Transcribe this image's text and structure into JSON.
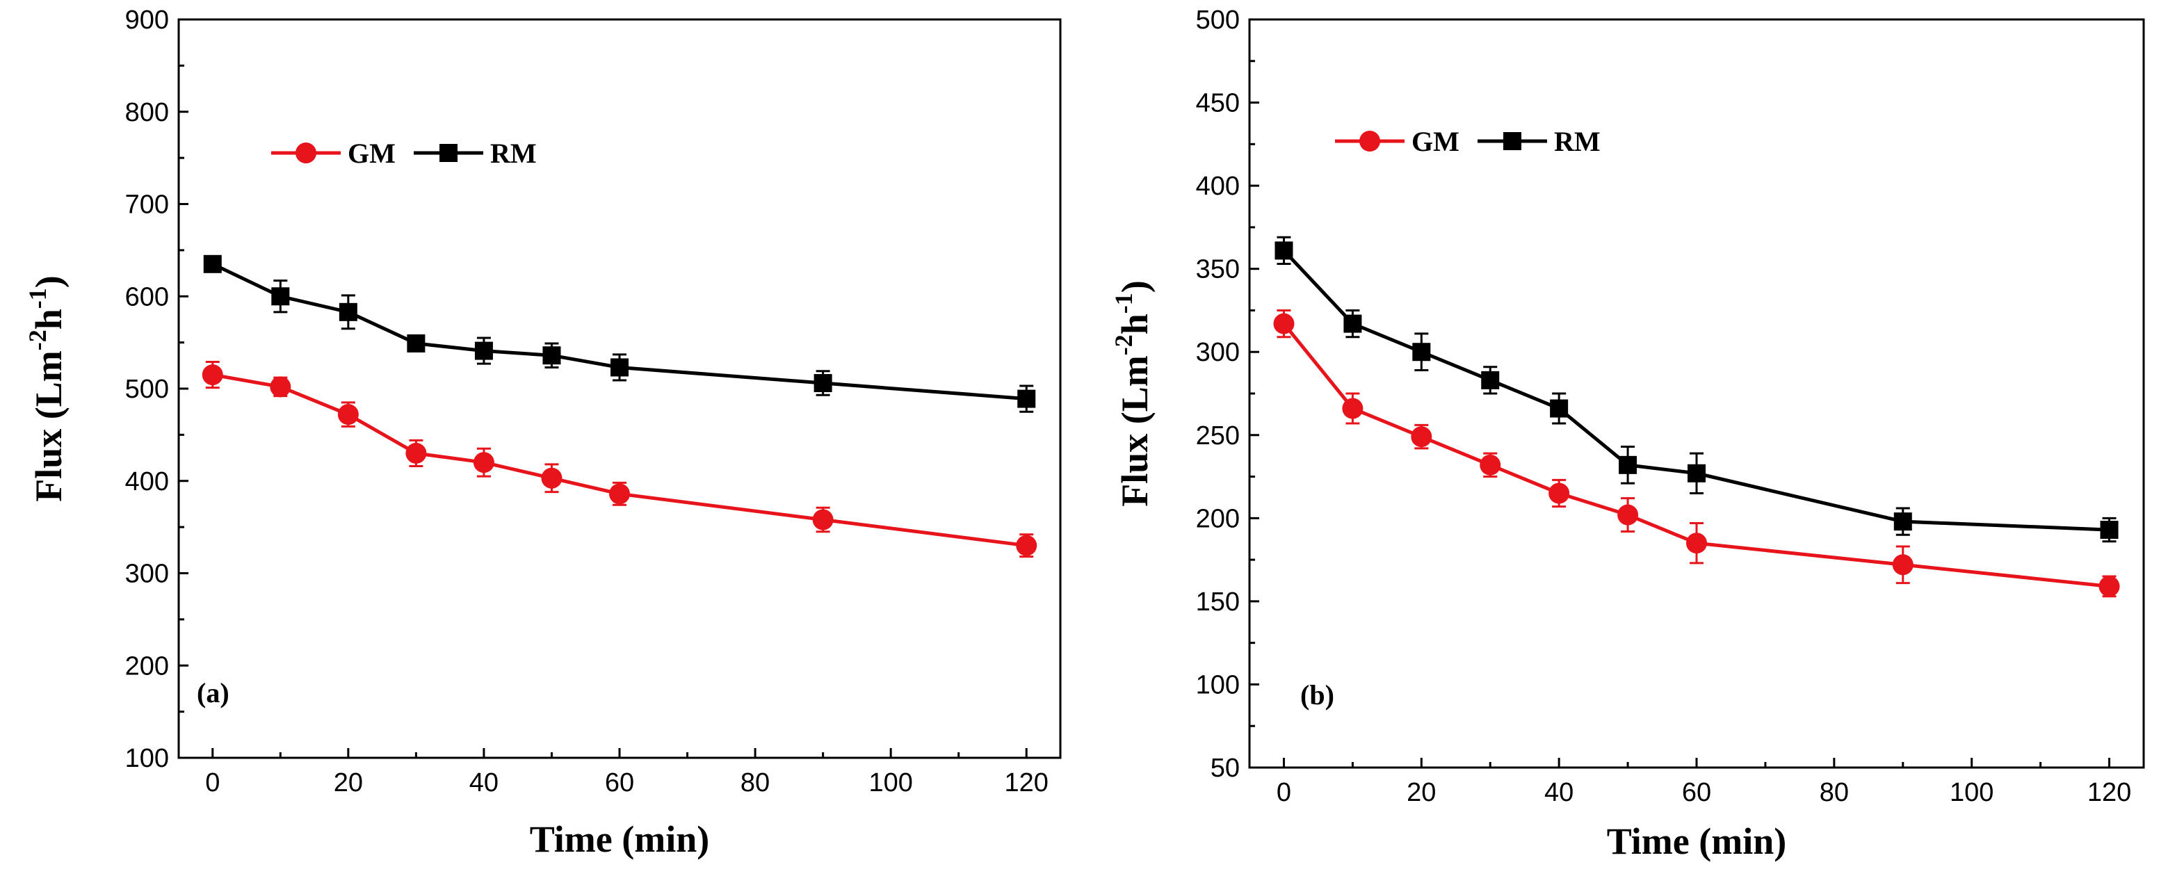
{
  "chart_data": [
    {
      "type": "line",
      "panel_label": "(a)",
      "xlabel": "Time (min)",
      "ylabel": "Flux (Lm⁻²h⁻¹)",
      "ylabel_parts": {
        "base": "Flux (Lm",
        "sup1": "-2",
        "mid": "h",
        "sup2": "-1",
        "end": ")"
      },
      "xlim": [
        -5,
        125
      ],
      "ylim": [
        100,
        900
      ],
      "xticks": [
        0,
        20,
        40,
        60,
        80,
        100,
        120
      ],
      "yticks": [
        100,
        200,
        300,
        400,
        500,
        600,
        700,
        800,
        900
      ],
      "legend": "top-left",
      "grid": false,
      "series": [
        {
          "name": "GM",
          "color": "#e8141b",
          "marker": "circle",
          "x": [
            0,
            10,
            20,
            30,
            40,
            50,
            60,
            90,
            120
          ],
          "y": [
            515,
            502,
            472,
            430,
            420,
            403,
            386,
            358,
            330
          ],
          "err": [
            14,
            10,
            13,
            14,
            15,
            15,
            12,
            13,
            12
          ]
        },
        {
          "name": "RM",
          "color": "#000000",
          "marker": "square",
          "x": [
            0,
            10,
            20,
            30,
            40,
            50,
            60,
            90,
            120
          ],
          "y": [
            635,
            600,
            583,
            549,
            541,
            536,
            523,
            506,
            489
          ],
          "err": [
            8,
            17,
            18,
            8,
            14,
            13,
            14,
            13,
            14
          ]
        }
      ]
    },
    {
      "type": "line",
      "panel_label": "(b)",
      "xlabel": "Time (min)",
      "ylabel": "Flux (Lm⁻²h⁻¹)",
      "ylabel_parts": {
        "base": "Flux (Lm",
        "sup1": "-2",
        "mid": "h",
        "sup2": "-1",
        "end": ")"
      },
      "xlim": [
        -5,
        125
      ],
      "ylim": [
        50,
        500
      ],
      "xticks": [
        0,
        20,
        40,
        60,
        80,
        100,
        120
      ],
      "yticks": [
        50,
        100,
        150,
        200,
        250,
        300,
        350,
        400,
        450,
        500
      ],
      "legend": "top-left",
      "grid": false,
      "series": [
        {
          "name": "GM",
          "color": "#e8141b",
          "marker": "circle",
          "x": [
            0,
            10,
            20,
            30,
            40,
            50,
            60,
            90,
            120
          ],
          "y": [
            317,
            266,
            249,
            232,
            215,
            202,
            185,
            172,
            159
          ],
          "err": [
            8,
            9,
            7,
            7,
            8,
            10,
            12,
            11,
            6
          ]
        },
        {
          "name": "RM",
          "color": "#000000",
          "marker": "square",
          "x": [
            0,
            10,
            20,
            30,
            40,
            50,
            60,
            90,
            120
          ],
          "y": [
            361,
            317,
            300,
            283,
            266,
            232,
            227,
            198,
            193
          ],
          "err": [
            8,
            8,
            11,
            8,
            9,
            11,
            12,
            8,
            7
          ]
        }
      ]
    }
  ]
}
